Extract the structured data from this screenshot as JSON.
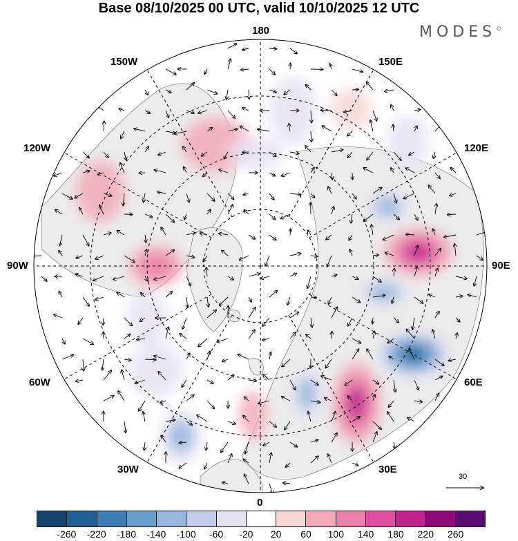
{
  "title": "Base 08/10/2025 00 UTC, valid 10/10/2025 12 UTC",
  "brand": "MODES",
  "brand_mark": "©",
  "longitude_labels": {
    "top": "180",
    "bottom": "0",
    "left": "90W",
    "right": "90E",
    "upper_left": "150W",
    "upper_right": "150E",
    "mid_upper_left": "120W",
    "mid_upper_right": "120E",
    "mid_lower_left": "60W",
    "mid_lower_right": "60E",
    "lower_left": "30W",
    "lower_right": "30E"
  },
  "vector_scale_label": "30",
  "colorbar": {
    "colors": [
      "#16436b",
      "#1f5f94",
      "#3d7fb5",
      "#669fcc",
      "#96b6dd",
      "#c3cbe6",
      "#e6e3f1",
      "#ffffff",
      "#f7d6d6",
      "#f2aab8",
      "#ea7faa",
      "#de4f9f",
      "#c1238f",
      "#8e0b7c",
      "#5b0b74"
    ],
    "ticks": [
      "-260",
      "-220",
      "-180",
      "-140",
      "-100",
      "-60",
      "-20",
      "20",
      "60",
      "100",
      "140",
      "180",
      "220",
      "260"
    ]
  },
  "map": {
    "ocean_color": "#ffffff",
    "land_color": "#ececec",
    "anomalies": [
      {
        "lon": 95,
        "r": 0.7,
        "value": 230,
        "rx": 50,
        "ry": 35
      },
      {
        "lon": 115,
        "r": 0.62,
        "value": -150,
        "rx": 32,
        "ry": 26
      },
      {
        "lon": 78,
        "r": 0.56,
        "value": -120,
        "rx": 40,
        "ry": 22
      },
      {
        "lon": 60,
        "r": 0.78,
        "value": -260,
        "rx": 55,
        "ry": 35
      },
      {
        "lon": 35,
        "r": 0.74,
        "value": 200,
        "rx": 35,
        "ry": 60
      },
      {
        "lon": 20,
        "r": 0.6,
        "value": -120,
        "rx": 22,
        "ry": 40
      },
      {
        "lon": -3,
        "r": 0.66,
        "value": 60,
        "rx": 20,
        "ry": 35
      },
      {
        "lon": -25,
        "r": 0.83,
        "value": -120,
        "rx": 30,
        "ry": 40
      },
      {
        "lon": -65,
        "r": 0.55,
        "value": -100,
        "rx": 30,
        "ry": 40
      },
      {
        "lon": -90,
        "r": 0.46,
        "value": 130,
        "rx": 40,
        "ry": 30
      },
      {
        "lon": -115,
        "r": 0.78,
        "value": 60,
        "rx": 35,
        "ry": 45
      },
      {
        "lon": -160,
        "r": 0.57,
        "value": 60,
        "rx": 50,
        "ry": 40
      },
      {
        "lon": -178,
        "r": 0.5,
        "value": -60,
        "rx": 40,
        "ry": 25
      },
      {
        "lon": 168,
        "r": 0.7,
        "value": -60,
        "rx": 35,
        "ry": 50
      },
      {
        "lon": 150,
        "r": 0.8,
        "value": 40,
        "rx": 30,
        "ry": 30
      },
      {
        "lon": -45,
        "r": 0.65,
        "value": -60,
        "rx": 40,
        "ry": 40
      },
      {
        "lon": 130,
        "r": 0.85,
        "value": -60,
        "rx": 30,
        "ry": 40
      }
    ]
  }
}
